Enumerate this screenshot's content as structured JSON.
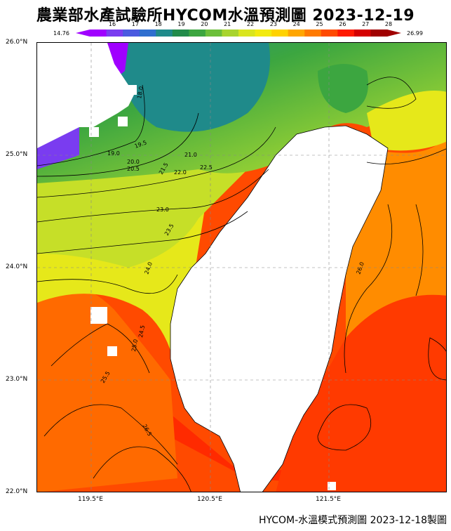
{
  "title": "農業部水產試驗所HYCOM水溫預測圖 2023-12-19",
  "footer": "HYCOM-水溫模式預測圖 2023-12-18製圖",
  "colorbar": {
    "min_label": "14.76",
    "max_label": "26.99",
    "ticks": [
      "16",
      "17",
      "18",
      "19",
      "20",
      "21",
      "22",
      "23",
      "24",
      "25",
      "26",
      "27",
      "28"
    ],
    "colors": [
      "#a000ff",
      "#7a3cf0",
      "#4a5ae0",
      "#2f6fcf",
      "#1f8a8a",
      "#228b4a",
      "#3ca640",
      "#6cbf3a",
      "#a8d42e",
      "#d9e51f",
      "#f2ea10",
      "#ffd200",
      "#ffa600",
      "#ff7a00",
      "#ff4a00",
      "#ff1a00",
      "#d40000",
      "#a00000"
    ]
  },
  "axes": {
    "lat_labels": [
      "26.0°N",
      "25.0°N",
      "24.0°N",
      "23.0°N",
      "22.0°N"
    ],
    "lon_labels": [
      "119.5°E",
      "120.5°E",
      "121.5°E"
    ]
  },
  "contours": [
    {
      "label": "18.0"
    },
    {
      "label": "19.0"
    },
    {
      "label": "19.5"
    },
    {
      "label": "20.0"
    },
    {
      "label": "20.5"
    },
    {
      "label": "21.0"
    },
    {
      "label": "21.5"
    },
    {
      "label": "22.0"
    },
    {
      "label": "22.5"
    },
    {
      "label": "23.0"
    },
    {
      "label": "23.5"
    },
    {
      "label": "24.0"
    },
    {
      "label": "24.5"
    },
    {
      "label": "25.0"
    },
    {
      "label": "25.5"
    },
    {
      "label": "26.0"
    },
    {
      "label": "26.5"
    }
  ]
}
